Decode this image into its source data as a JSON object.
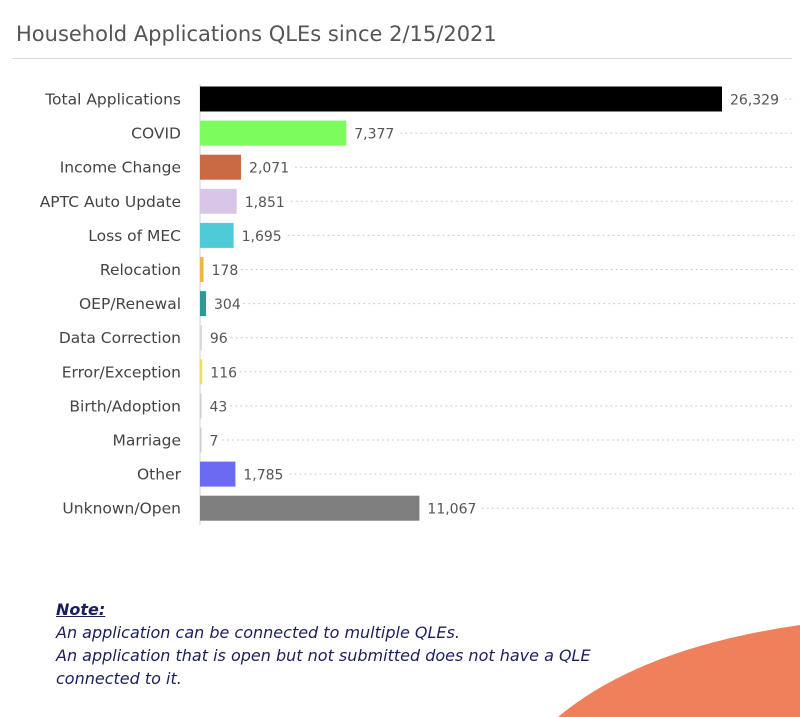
{
  "panel": {
    "title": "Household Applications QLEs since 2/15/2021"
  },
  "chart_data": {
    "type": "bar",
    "orientation": "horizontal",
    "title": "",
    "xlabel": "",
    "ylabel": "",
    "grid": "dotted guide lines per bar",
    "legend": "none",
    "categories": [
      "Total Applications",
      "COVID",
      "Income Change",
      "APTC Auto Update",
      "Loss of MEC",
      "Relocation",
      "OEP/Renewal",
      "Data Correction",
      "Error/Exception",
      "Birth/Adoption",
      "Marriage",
      "Other",
      "Unknown/Open"
    ],
    "values": [
      26329,
      7377,
      2071,
      1851,
      1695,
      178,
      304,
      96,
      116,
      43,
      7,
      1785,
      11067
    ],
    "labels": [
      "26,329",
      "7,377",
      "2,071",
      "1,851",
      "1,695",
      "178",
      "304",
      "96",
      "116",
      "43",
      "7",
      "1,785",
      "11,067"
    ],
    "colors": [
      "#000000",
      "#7dfc5e",
      "#c96a45",
      "#d9c6e6",
      "#4ecbd6",
      "#f0b53d",
      "#2a9a96",
      "#d9d9d9",
      "#ece05a",
      "#cfcfcf",
      "#cfcfcf",
      "#6a6af2",
      "#7f7f7f"
    ],
    "xlim": [
      0,
      26329
    ]
  },
  "note": {
    "heading": "Note:",
    "line1": "An application can be connected to multiple QLEs.",
    "line2": "An application that is open but not submitted does not have a QLE connected to it."
  },
  "decoration": {
    "swoosh_color": "#f07f5c"
  }
}
